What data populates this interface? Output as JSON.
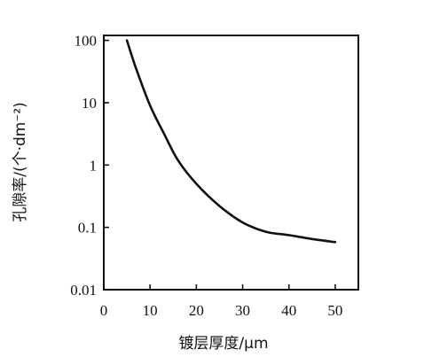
{
  "chart_data": {
    "type": "line",
    "xlabel": "镀层厚度/μm",
    "ylabel": "孔隙率/(个·dm⁻²)",
    "xlim": [
      0,
      55
    ],
    "ylim": [
      0.01,
      120
    ],
    "y_scale": "log",
    "grid": false,
    "x_ticks": [
      0,
      10,
      20,
      30,
      40,
      50
    ],
    "y_ticks": [
      0.01,
      0.1,
      1,
      10,
      100
    ],
    "x_tick_labels": [
      "0",
      "10",
      "20",
      "30",
      "40",
      "50"
    ],
    "y_tick_labels": [
      "0.01",
      "0.1",
      "1",
      "10",
      "100"
    ],
    "series": [
      {
        "x": [
          5,
          7,
          10,
          13,
          16,
          20,
          25,
          30,
          35,
          40,
          45,
          50
        ],
        "y": [
          100,
          35,
          9,
          3.2,
          1.2,
          0.5,
          0.22,
          0.12,
          0.085,
          0.075,
          0.065,
          0.058
        ]
      }
    ]
  }
}
